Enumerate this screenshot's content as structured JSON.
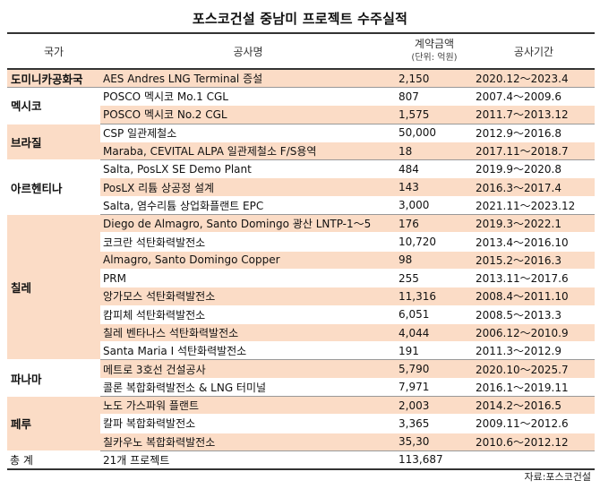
{
  "title": "포스코건설 중남미 프로젝트 수주실적",
  "headers": {
    "country": "국가",
    "project": "공사명",
    "amount": "계약금액",
    "amount_unit": "(단위: 억원)",
    "period": "공사기간"
  },
  "groups": [
    {
      "country": "도미니카공화국",
      "rows": [
        {
          "project": "AES Andres LNG Terminal 증설",
          "amount": "2,150",
          "period": "2020.12～2023.4"
        }
      ]
    },
    {
      "country": "멕시코",
      "rows": [
        {
          "project": "POSCO 멕시코 Mo.1 CGL",
          "amount": "807",
          "period": "2007.4～2009.6"
        },
        {
          "project": "POSCO 멕시코 No.2 CGL",
          "amount": "1,575",
          "period": "2011.7～2013.12"
        }
      ]
    },
    {
      "country": "브라질",
      "rows": [
        {
          "project": "CSP 일관제철소",
          "amount": "50,000",
          "period": "2012.9～2016.8"
        },
        {
          "project": "Maraba, CEVITAL ALPA 일관제철소 F/S용역",
          "amount": "18",
          "period": "2017.11～2018.7"
        }
      ]
    },
    {
      "country": "아르헨티나",
      "rows": [
        {
          "project": "Salta, PosLX SE Demo Plant",
          "amount": "484",
          "period": "2019.9～2020.8"
        },
        {
          "project": "PosLX 리튬 상공정 설계",
          "amount": "143",
          "period": "2016.3～2017.4"
        },
        {
          "project": "Salta, 염수리튬 상업화플랜트 EPC",
          "amount": "3,000",
          "period": "2021.11～2023.12"
        }
      ]
    },
    {
      "country": "칠레",
      "rows": [
        {
          "project": "Diego de Almagro, Santo Domingo 광산 LNTP-1～5",
          "amount": "176",
          "period": "2019.3～2022.1"
        },
        {
          "project": "코크란 석탄화력발전소",
          "amount": "10,720",
          "period": "2013.4～2016.10"
        },
        {
          "project": "Almagro, Santo Domingo Copper",
          "amount": "98",
          "period": "2015.2～2016.3"
        },
        {
          "project": "PRM",
          "amount": "255",
          "period": "2013.11～2017.6"
        },
        {
          "project": "앙가모스 석탄화력발전소",
          "amount": "11,316",
          "period": "2008.4～2011.10"
        },
        {
          "project": "캄피체 석탄화력발전소",
          "amount": "6,051",
          "period": "2008.5～2013.3"
        },
        {
          "project": "칠레 벤타나스 석탄화력발전소",
          "amount": "4,044",
          "period": "2006.12～2010.9"
        },
        {
          "project": "Santa Maria I 석탄화력발전소",
          "amount": "191",
          "period": "2011.3～2012.9"
        }
      ]
    },
    {
      "country": "파나마",
      "rows": [
        {
          "project": "메트로 3호선 건설공사",
          "amount": "5,790",
          "period": "2020.10～2025.7"
        },
        {
          "project": "콜론 복합화력발전소 & LNG 터미널",
          "amount": "7,971",
          "period": "2016.1～2019.11"
        }
      ]
    },
    {
      "country": "페루",
      "rows": [
        {
          "project": "노도 가스파워 플랜트",
          "amount": "2,003",
          "period": "2014.2～2016.5"
        },
        {
          "project": "칼파 복합화력발전소",
          "amount": "3,365",
          "period": "2009.11～2012.6"
        },
        {
          "project": "칠카우노 복합화력발전소",
          "amount": "35,30",
          "period": "2010.6～2012.12"
        }
      ]
    }
  ],
  "total": {
    "label": "총 계",
    "project": "21개 프로젝트",
    "amount": "113,687",
    "period": ""
  },
  "source": "자료:포스코건설",
  "colors": {
    "highlight": "#fbdcc6",
    "rule": "#333333"
  }
}
